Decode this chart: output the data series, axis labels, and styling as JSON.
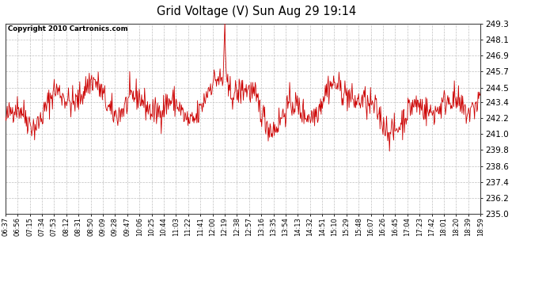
{
  "title": "Grid Voltage (V) Sun Aug 29 19:14",
  "copyright": "Copyright 2010 Cartronics.com",
  "line_color": "#cc0000",
  "background_color": "#ffffff",
  "plot_bg_color": "#ffffff",
  "grid_color": "#c0c0c0",
  "yticks": [
    235.0,
    236.2,
    237.4,
    238.6,
    239.8,
    241.0,
    242.2,
    243.4,
    244.5,
    245.7,
    246.9,
    248.1,
    249.3
  ],
  "ymin": 235.0,
  "ymax": 249.3,
  "xtick_labels": [
    "06:37",
    "06:56",
    "07:15",
    "07:34",
    "07:53",
    "08:12",
    "08:31",
    "08:50",
    "09:09",
    "09:28",
    "09:47",
    "10:06",
    "10:25",
    "10:44",
    "11:03",
    "11:22",
    "11:41",
    "12:00",
    "12:19",
    "12:38",
    "12:57",
    "13:16",
    "13:35",
    "13:54",
    "14:13",
    "14:32",
    "14:51",
    "15:10",
    "15:29",
    "15:48",
    "16:07",
    "16:26",
    "16:45",
    "17:04",
    "17:23",
    "17:42",
    "18:01",
    "18:20",
    "18:39",
    "18:59"
  ],
  "seed": 42,
  "n_points": 800
}
